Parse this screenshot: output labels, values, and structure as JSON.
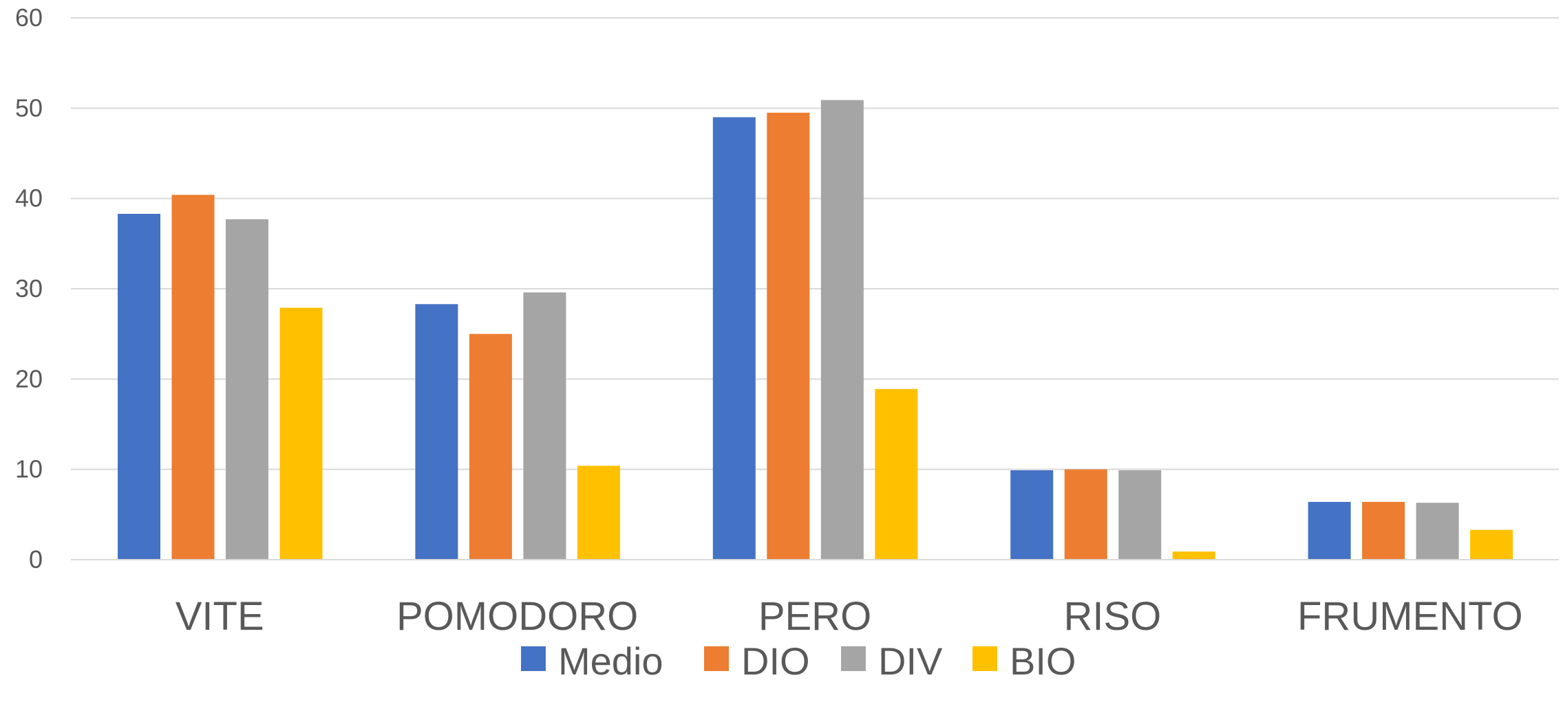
{
  "chart_data": {
    "type": "bar",
    "title": "",
    "xlabel": "",
    "ylabel": "",
    "categories": [
      "VITE",
      "POMODORO",
      "PERO",
      "RISO",
      "FRUMENTO"
    ],
    "series": [
      {
        "name": "Medio",
        "color": "#4472c4",
        "values": [
          38.3,
          28.3,
          49.0,
          9.9,
          6.4
        ]
      },
      {
        "name": "DIO",
        "color": "#ed7d31",
        "values": [
          40.4,
          25.0,
          49.5,
          10.0,
          6.4
        ]
      },
      {
        "name": "DIV",
        "color": "#a5a5a5",
        "values": [
          37.7,
          29.6,
          50.9,
          9.9,
          6.3
        ]
      },
      {
        "name": "BIO",
        "color": "#ffc000",
        "values": [
          27.9,
          10.4,
          18.9,
          0.9,
          3.3
        ]
      }
    ],
    "ylim": [
      0,
      60
    ],
    "yticks": [
      0,
      10,
      20,
      30,
      40,
      50,
      60
    ],
    "grid": true,
    "legend_position": "bottom"
  }
}
